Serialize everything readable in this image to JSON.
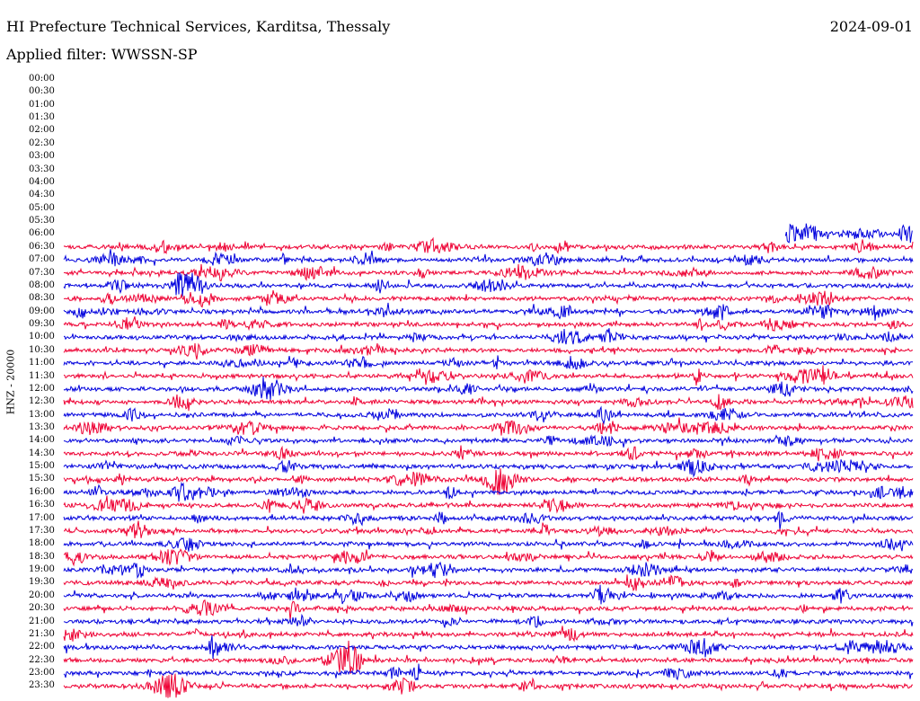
{
  "header": {
    "station": "HI Prefecture Technical Services, Karditsa, Thessaly",
    "date": "2024-09-01",
    "filter": "Applied filter: WWSSN-SP"
  },
  "channel_label": "HNZ - 20000",
  "colors": {
    "trace_a": "#0000dd",
    "trace_b": "#ee0033",
    "background": "#ffffff",
    "text": "#000000"
  },
  "chart_data": {
    "type": "line",
    "subtype": "helicorder",
    "row_interval_minutes": 30,
    "row_labels": [
      "00:00",
      "00:30",
      "01:00",
      "01:30",
      "02:00",
      "02:30",
      "03:00",
      "03:30",
      "04:00",
      "04:30",
      "05:00",
      "05:30",
      "06:00",
      "06:30",
      "07:00",
      "07:30",
      "08:00",
      "08:30",
      "09:00",
      "09:30",
      "10:00",
      "10:30",
      "11:00",
      "11:30",
      "12:00",
      "12:30",
      "13:00",
      "13:30",
      "14:00",
      "14:30",
      "15:00",
      "15:30",
      "16:00",
      "16:30",
      "17:00",
      "17:30",
      "18:00",
      "18:30",
      "19:00",
      "19:30",
      "20:00",
      "20:30",
      "21:00",
      "21:30",
      "22:00",
      "22:30",
      "23:00",
      "23:30"
    ],
    "data_start_row": "06:00",
    "data_start_fraction_of_row": 0.85,
    "trace_color_sequence": [
      "trace_a",
      "trace_b"
    ],
    "grid": false,
    "legend": "none"
  }
}
